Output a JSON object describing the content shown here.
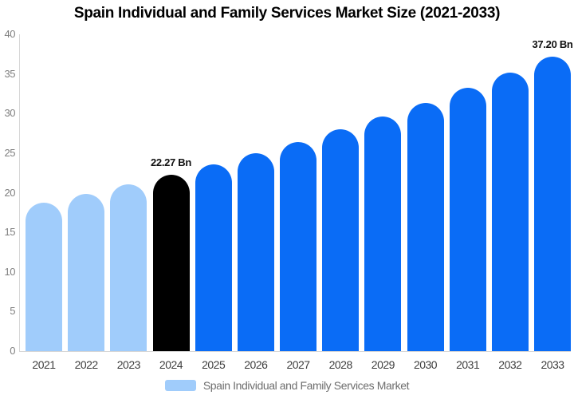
{
  "title": "Spain Individual and Family Services Market Size (2021-2033)",
  "legend": {
    "label": "Spain Individual and Family Services Market",
    "swatch_color": "#a0ccfb"
  },
  "chart_data": {
    "type": "bar",
    "title": "Spain Individual and Family Services Market Size (2021-2033)",
    "categories": [
      "2021",
      "2022",
      "2023",
      "2024",
      "2025",
      "2026",
      "2027",
      "2028",
      "2029",
      "2030",
      "2031",
      "2032",
      "2033"
    ],
    "series": [
      {
        "name": "Spain Individual and Family Services Market",
        "values": [
          18.77,
          19.87,
          21.04,
          22.27,
          23.58,
          24.96,
          26.43,
          27.98,
          29.62,
          31.36,
          33.2,
          35.15,
          37.2
        ]
      }
    ],
    "unit": "Bn",
    "ylim": [
      0,
      40
    ],
    "yticks": [
      0,
      5,
      10,
      15,
      20,
      25,
      30,
      35,
      40
    ],
    "grid": false,
    "legend_position": "bottom",
    "bar_colors": [
      "#a0ccfb",
      "#a0ccfb",
      "#a0ccfb",
      "#000000",
      "#0a6cf6",
      "#0a6cf6",
      "#0a6cf6",
      "#0a6cf6",
      "#0a6cf6",
      "#0a6cf6",
      "#0a6cf6",
      "#0a6cf6",
      "#0a6cf6"
    ],
    "annotations": [
      {
        "category": "2024",
        "label": "22.27 Bn"
      },
      {
        "category": "2033",
        "label": "37.20 Bn"
      }
    ]
  },
  "colors": {
    "background": "#ffffff",
    "title_text": "#000000",
    "axis_line": "#d6d6d6",
    "ytick_text": "#7f7f7f",
    "xtick_text": "#3d3d3d",
    "annotation_text": "#111111",
    "legend_text": "#6e6e6e"
  }
}
